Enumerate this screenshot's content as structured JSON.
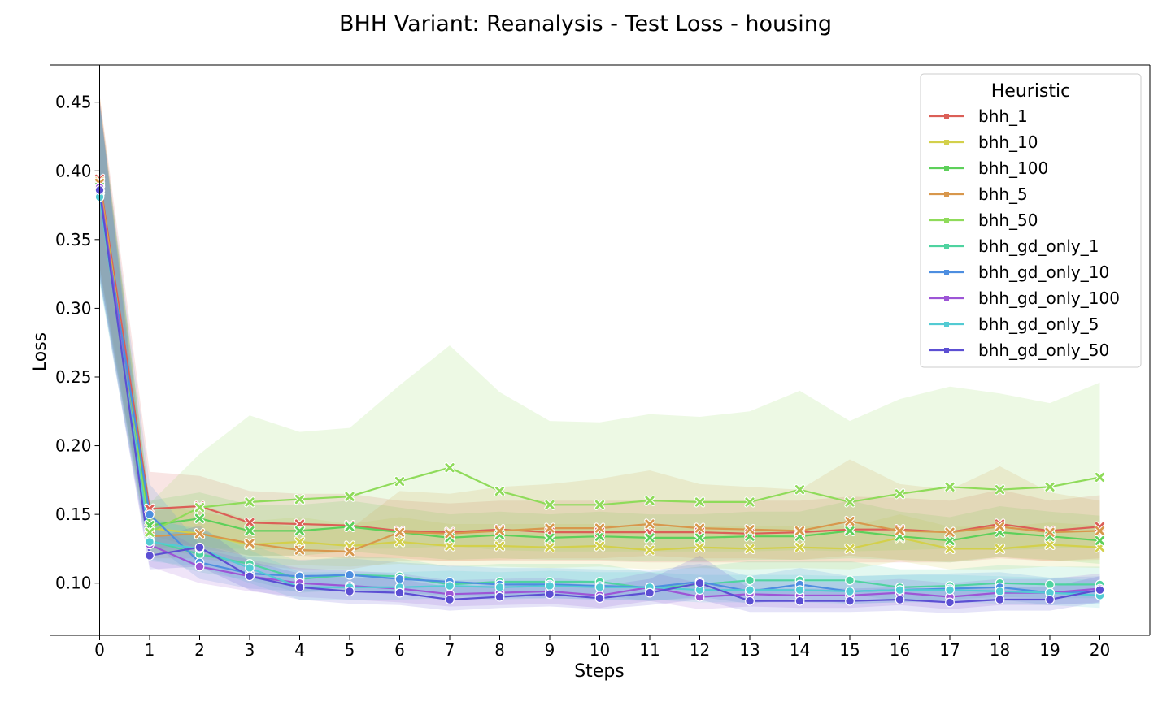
{
  "chart_data": {
    "type": "line",
    "title": "BHH Variant: Reanalysis - Test Loss - housing",
    "xlabel": "Steps",
    "ylabel": "Loss",
    "xlim": [
      -1,
      21
    ],
    "ylim": [
      0.062,
      0.477
    ],
    "x": [
      0,
      1,
      2,
      3,
      4,
      5,
      6,
      7,
      8,
      9,
      10,
      11,
      12,
      13,
      14,
      15,
      16,
      17,
      18,
      19,
      20
    ],
    "xticks": [
      "0",
      "1",
      "2",
      "3",
      "4",
      "5",
      "6",
      "7",
      "8",
      "9",
      "10",
      "11",
      "12",
      "13",
      "14",
      "15",
      "16",
      "17",
      "18",
      "19",
      "20"
    ],
    "yticks": [
      "0.10",
      "0.15",
      "0.20",
      "0.25",
      "0.30",
      "0.35",
      "0.40",
      "0.45"
    ],
    "ytick_values": [
      0.1,
      0.15,
      0.2,
      0.25,
      0.3,
      0.35,
      0.4,
      0.45
    ],
    "legend": {
      "title": "Heuristic",
      "placement": "top-right"
    },
    "grid": false,
    "series": [
      {
        "name": "bhh_1",
        "color": "#db5f57",
        "marker": "x",
        "values": [
          0.394,
          0.154,
          0.156,
          0.144,
          0.143,
          0.142,
          0.138,
          0.137,
          0.139,
          0.137,
          0.137,
          0.137,
          0.137,
          0.136,
          0.137,
          0.139,
          0.139,
          0.137,
          0.143,
          0.138,
          0.141
        ],
        "lower": [
          0.33,
          0.135,
          0.125,
          0.12,
          0.12,
          0.118,
          0.118,
          0.116,
          0.116,
          0.116,
          0.116,
          0.115,
          0.115,
          0.115,
          0.115,
          0.115,
          0.115,
          0.115,
          0.118,
          0.116,
          0.118
        ],
        "upper": [
          0.455,
          0.181,
          0.178,
          0.167,
          0.165,
          0.165,
          0.16,
          0.158,
          0.16,
          0.16,
          0.16,
          0.16,
          0.16,
          0.16,
          0.16,
          0.163,
          0.162,
          0.16,
          0.168,
          0.16,
          0.164
        ]
      },
      {
        "name": "bhh_10",
        "color": "#d3d04b",
        "marker": "x",
        "values": [
          0.392,
          0.14,
          0.136,
          0.128,
          0.13,
          0.127,
          0.13,
          0.127,
          0.127,
          0.126,
          0.127,
          0.124,
          0.126,
          0.125,
          0.126,
          0.125,
          0.133,
          0.125,
          0.125,
          0.128,
          0.126
        ],
        "lower": [
          0.33,
          0.125,
          0.12,
          0.113,
          0.113,
          0.112,
          0.114,
          0.112,
          0.112,
          0.111,
          0.112,
          0.11,
          0.111,
          0.11,
          0.111,
          0.11,
          0.116,
          0.11,
          0.11,
          0.112,
          0.111
        ],
        "upper": [
          0.455,
          0.157,
          0.152,
          0.145,
          0.148,
          0.143,
          0.148,
          0.143,
          0.143,
          0.143,
          0.143,
          0.14,
          0.142,
          0.141,
          0.142,
          0.141,
          0.15,
          0.141,
          0.141,
          0.144,
          0.142
        ]
      },
      {
        "name": "bhh_100",
        "color": "#5dd05a",
        "marker": "x",
        "values": [
          0.388,
          0.142,
          0.147,
          0.138,
          0.138,
          0.141,
          0.137,
          0.133,
          0.135,
          0.133,
          0.134,
          0.133,
          0.133,
          0.134,
          0.134,
          0.138,
          0.134,
          0.131,
          0.137,
          0.134,
          0.131
        ],
        "lower": [
          0.325,
          0.125,
          0.128,
          0.12,
          0.12,
          0.123,
          0.12,
          0.117,
          0.118,
          0.117,
          0.117,
          0.116,
          0.116,
          0.117,
          0.117,
          0.118,
          0.117,
          0.115,
          0.119,
          0.117,
          0.114
        ],
        "upper": [
          0.45,
          0.16,
          0.166,
          0.157,
          0.157,
          0.16,
          0.155,
          0.15,
          0.152,
          0.15,
          0.152,
          0.15,
          0.15,
          0.152,
          0.152,
          0.16,
          0.152,
          0.148,
          0.156,
          0.152,
          0.149
        ]
      },
      {
        "name": "bhh_5",
        "color": "#d8974c",
        "marker": "x",
        "values": [
          0.391,
          0.134,
          0.136,
          0.129,
          0.124,
          0.123,
          0.137,
          0.136,
          0.138,
          0.14,
          0.14,
          0.143,
          0.14,
          0.139,
          0.138,
          0.145,
          0.138,
          0.137,
          0.141,
          0.137,
          0.138
        ],
        "lower": [
          0.33,
          0.118,
          0.118,
          0.113,
          0.11,
          0.11,
          0.116,
          0.116,
          0.117,
          0.118,
          0.118,
          0.12,
          0.118,
          0.118,
          0.117,
          0.12,
          0.117,
          0.116,
          0.119,
          0.116,
          0.117
        ],
        "upper": [
          0.455,
          0.152,
          0.157,
          0.146,
          0.14,
          0.139,
          0.167,
          0.165,
          0.17,
          0.172,
          0.176,
          0.182,
          0.172,
          0.17,
          0.168,
          0.19,
          0.172,
          0.168,
          0.185,
          0.166,
          0.16
        ]
      },
      {
        "name": "bhh_50",
        "color": "#8fdb5a",
        "marker": "x",
        "values": [
          0.386,
          0.137,
          0.155,
          0.159,
          0.161,
          0.163,
          0.174,
          0.184,
          0.167,
          0.157,
          0.157,
          0.16,
          0.159,
          0.159,
          0.168,
          0.159,
          0.165,
          0.17,
          0.168,
          0.17,
          0.177
        ],
        "lower": [
          0.325,
          0.12,
          0.125,
          0.125,
          0.124,
          0.125,
          0.125,
          0.127,
          0.124,
          0.123,
          0.123,
          0.123,
          0.123,
          0.123,
          0.124,
          0.123,
          0.124,
          0.125,
          0.124,
          0.125,
          0.126
        ],
        "upper": [
          0.45,
          0.158,
          0.194,
          0.222,
          0.21,
          0.213,
          0.244,
          0.273,
          0.239,
          0.218,
          0.217,
          0.223,
          0.221,
          0.225,
          0.24,
          0.218,
          0.234,
          0.243,
          0.238,
          0.231,
          0.246
        ]
      },
      {
        "name": "bhh_gd_only_1",
        "color": "#4fd3a0",
        "marker": "o",
        "values": [
          0.382,
          0.131,
          0.121,
          0.114,
          0.103,
          0.106,
          0.105,
          0.099,
          0.101,
          0.101,
          0.101,
          0.096,
          0.099,
          0.102,
          0.102,
          0.102,
          0.097,
          0.098,
          0.1,
          0.099,
          0.099
        ],
        "lower": [
          0.32,
          0.118,
          0.108,
          0.102,
          0.093,
          0.095,
          0.094,
          0.089,
          0.091,
          0.091,
          0.091,
          0.087,
          0.089,
          0.092,
          0.092,
          0.092,
          0.087,
          0.088,
          0.09,
          0.089,
          0.089
        ],
        "upper": [
          0.448,
          0.148,
          0.138,
          0.128,
          0.116,
          0.12,
          0.118,
          0.112,
          0.114,
          0.114,
          0.114,
          0.108,
          0.112,
          0.116,
          0.116,
          0.116,
          0.11,
          0.11,
          0.113,
          0.112,
          0.112
        ]
      },
      {
        "name": "bhh_gd_only_10",
        "color": "#4d8ee0",
        "marker": "o",
        "values": [
          0.384,
          0.15,
          0.115,
          0.107,
          0.105,
          0.106,
          0.103,
          0.101,
          0.099,
          0.099,
          0.098,
          0.097,
          0.101,
          0.094,
          0.099,
          0.094,
          0.095,
          0.096,
          0.097,
          0.093,
          0.094
        ],
        "lower": [
          0.32,
          0.13,
          0.103,
          0.096,
          0.094,
          0.095,
          0.093,
          0.091,
          0.089,
          0.089,
          0.088,
          0.087,
          0.09,
          0.085,
          0.089,
          0.085,
          0.086,
          0.087,
          0.088,
          0.084,
          0.085
        ],
        "upper": [
          0.45,
          0.172,
          0.128,
          0.119,
          0.117,
          0.118,
          0.115,
          0.113,
          0.111,
          0.111,
          0.11,
          0.109,
          0.114,
          0.105,
          0.111,
          0.105,
          0.106,
          0.107,
          0.108,
          0.104,
          0.105
        ]
      },
      {
        "name": "bhh_gd_only_100",
        "color": "#9d55d6",
        "marker": "o",
        "values": [
          0.388,
          0.128,
          0.112,
          0.105,
          0.1,
          0.098,
          0.096,
          0.092,
          0.093,
          0.094,
          0.091,
          0.097,
          0.09,
          0.092,
          0.091,
          0.091,
          0.093,
          0.09,
          0.093,
          0.093,
          0.096
        ],
        "lower": [
          0.325,
          0.112,
          0.1,
          0.094,
          0.09,
          0.088,
          0.086,
          0.083,
          0.084,
          0.085,
          0.082,
          0.087,
          0.081,
          0.083,
          0.082,
          0.082,
          0.084,
          0.081,
          0.084,
          0.084,
          0.086
        ],
        "upper": [
          0.452,
          0.145,
          0.125,
          0.117,
          0.111,
          0.109,
          0.107,
          0.102,
          0.103,
          0.104,
          0.101,
          0.108,
          0.1,
          0.102,
          0.101,
          0.101,
          0.103,
          0.1,
          0.103,
          0.103,
          0.107
        ]
      },
      {
        "name": "bhh_gd_only_5",
        "color": "#53cbd3",
        "marker": "o",
        "values": [
          0.381,
          0.13,
          0.125,
          0.111,
          0.097,
          0.097,
          0.097,
          0.098,
          0.097,
          0.098,
          0.097,
          0.097,
          0.095,
          0.095,
          0.095,
          0.094,
          0.095,
          0.095,
          0.094,
          0.093,
          0.091
        ],
        "lower": [
          0.318,
          0.116,
          0.112,
          0.1,
          0.088,
          0.088,
          0.088,
          0.089,
          0.088,
          0.089,
          0.088,
          0.088,
          0.086,
          0.086,
          0.086,
          0.085,
          0.086,
          0.086,
          0.085,
          0.084,
          0.082
        ],
        "upper": [
          0.448,
          0.146,
          0.14,
          0.124,
          0.108,
          0.108,
          0.108,
          0.109,
          0.108,
          0.109,
          0.108,
          0.108,
          0.106,
          0.106,
          0.106,
          0.105,
          0.106,
          0.106,
          0.105,
          0.104,
          0.102
        ]
      },
      {
        "name": "bhh_gd_only_50",
        "color": "#5c4fd3",
        "marker": "o",
        "values": [
          0.386,
          0.12,
          0.126,
          0.105,
          0.097,
          0.094,
          0.093,
          0.088,
          0.09,
          0.092,
          0.089,
          0.093,
          0.1,
          0.087,
          0.087,
          0.087,
          0.088,
          0.086,
          0.088,
          0.088,
          0.095
        ],
        "lower": [
          0.322,
          0.11,
          0.112,
          0.095,
          0.088,
          0.085,
          0.084,
          0.08,
          0.082,
          0.083,
          0.081,
          0.084,
          0.088,
          0.079,
          0.079,
          0.079,
          0.08,
          0.078,
          0.08,
          0.08,
          0.086
        ],
        "upper": [
          0.452,
          0.132,
          0.142,
          0.116,
          0.107,
          0.104,
          0.103,
          0.097,
          0.099,
          0.101,
          0.098,
          0.103,
          0.12,
          0.096,
          0.096,
          0.096,
          0.097,
          0.095,
          0.097,
          0.097,
          0.105
        ]
      }
    ]
  }
}
